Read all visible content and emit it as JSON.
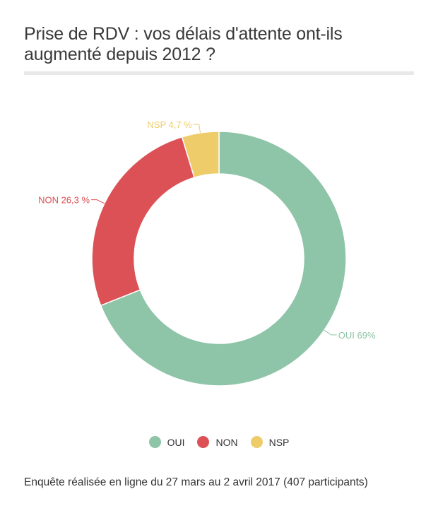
{
  "chart_data": {
    "type": "pie",
    "title": "Prise de RDV : vos délais d'attente ont-ils augmenté depuis 2012 ?",
    "categories": [
      "OUI",
      "NON",
      "NSP"
    ],
    "values": [
      69,
      26.3,
      4.7
    ],
    "data_labels": [
      "OUI 69%",
      "NON 26,3 %",
      "NSP 4,7 %"
    ],
    "colors": [
      "#8ec4a7",
      "#dc5156",
      "#eecc6a"
    ],
    "donut": true,
    "legend_position": "bottom"
  },
  "footnote": "Enquête réalisée en ligne du 27 mars au 2 avril 2017 (407 participants)"
}
